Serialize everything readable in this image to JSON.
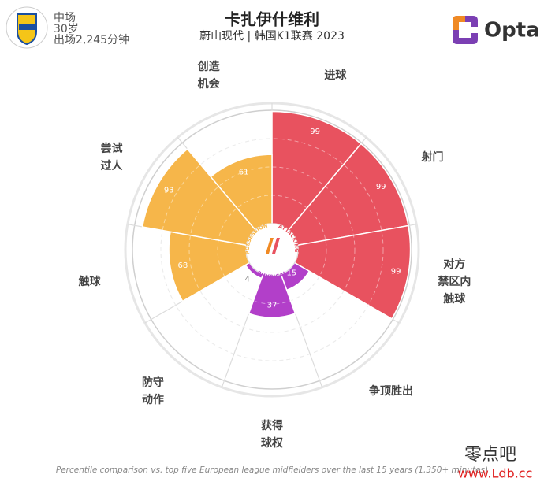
{
  "header": {
    "position": "中场",
    "age": "30岁",
    "minutes": "出场2,245分钟",
    "brand": "Opta"
  },
  "chart_data": {
    "type": "polar",
    "title": "卡扎伊什维利",
    "subtitle": "蔚山现代 | 韩国K1联赛 2023",
    "categories": [
      "进球",
      "射门",
      "对方\n禁区内\n触球",
      "争顶胜出",
      "获得\n球权",
      "防守\n动作",
      "触球",
      "尝试\n过人",
      "创造\n机会"
    ],
    "values": [
      99,
      99,
      99,
      15,
      37,
      4,
      68,
      93,
      61
    ],
    "colors": [
      "#e8525f",
      "#e8525f",
      "#e8525f",
      "#b23fc9",
      "#b23fc9",
      "#b23fc9",
      "#f6b64a",
      "#f6b64a",
      "#f6b64a"
    ],
    "rlim": [
      0,
      100
    ],
    "hub_labels": {
      "possession": "POSSESSION",
      "attacking": "ATTACKING",
      "physical": "PHYSICAL"
    },
    "footnote": "Percentile comparison vs. top five European league midfielders over the last 15 years (1,350+ minutes)"
  },
  "watermark": {
    "name": "零点吧",
    "url": "www.Ldb.cc"
  }
}
